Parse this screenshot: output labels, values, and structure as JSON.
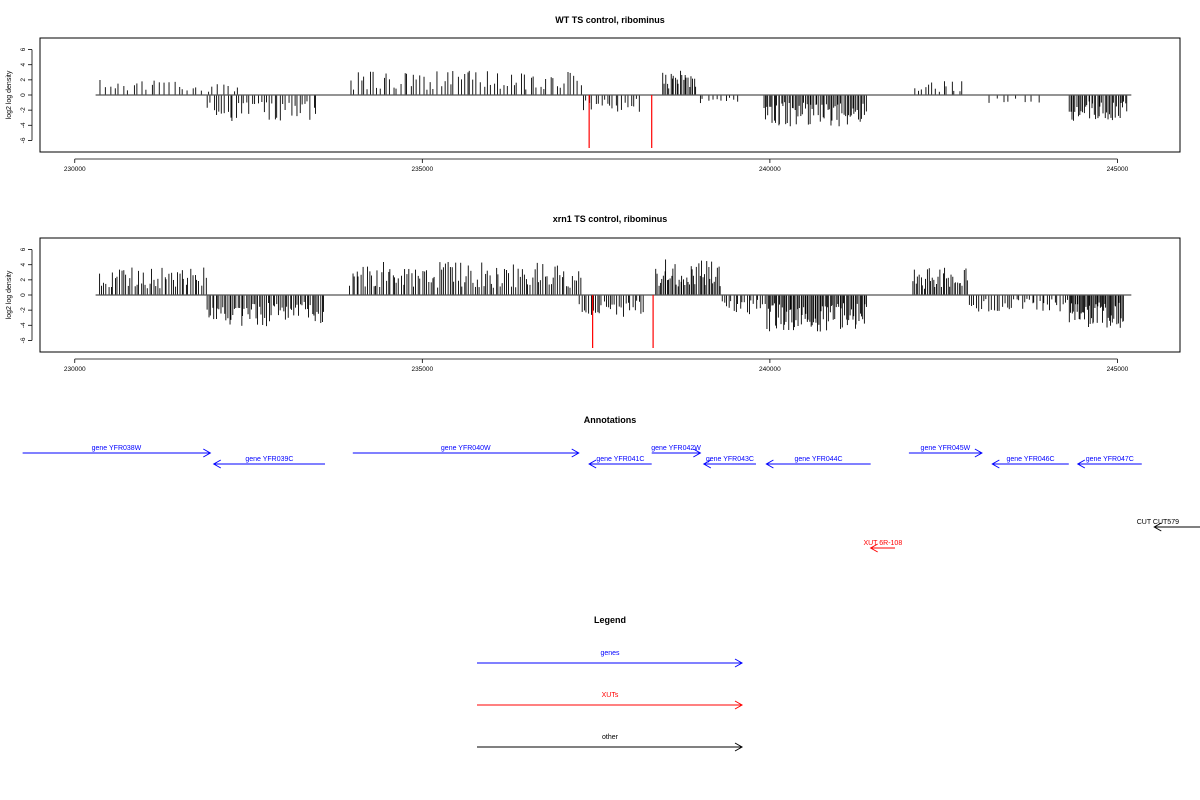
{
  "chart_data": [
    {
      "type": "bar",
      "title": "WT TS control, ribominus",
      "xlabel": "",
      "ylabel": "log2 log density",
      "xlim": [
        229500,
        245900
      ],
      "ylim": [
        -7,
        7
      ],
      "x_ticks": [
        230000,
        235000,
        240000,
        245000
      ],
      "y_ticks": [
        6,
        4,
        2,
        0,
        -2,
        -4,
        -6
      ],
      "baseline": {
        "x": [
          230300,
          245200
        ],
        "y": 0
      },
      "segments": [
        {
          "start": 230350,
          "end": 231800,
          "sign": 1,
          "amp": 2.0,
          "count": 22
        },
        {
          "start": 231800,
          "end": 232400,
          "sign": 1,
          "amp": 1.5,
          "count": 8
        },
        {
          "start": 231900,
          "end": 233500,
          "sign": -1,
          "amp": 3.0,
          "count": 40
        },
        {
          "start": 233950,
          "end": 237300,
          "sign": 1,
          "amp": 2.8,
          "count": 70
        },
        {
          "start": 237300,
          "end": 238150,
          "sign": -1,
          "amp": 2.0,
          "count": 20
        },
        {
          "start": 238450,
          "end": 238950,
          "sign": 1,
          "amp": 2.8,
          "count": 22
        },
        {
          "start": 238950,
          "end": 239600,
          "sign": -1,
          "amp": 1.0,
          "count": 10
        },
        {
          "start": 239900,
          "end": 241400,
          "sign": -1,
          "amp": 3.6,
          "count": 70
        },
        {
          "start": 242050,
          "end": 242800,
          "sign": 1,
          "amp": 1.6,
          "count": 14
        },
        {
          "start": 243100,
          "end": 243900,
          "sign": -1,
          "amp": 1.0,
          "count": 8
        },
        {
          "start": 244300,
          "end": 245150,
          "sign": -1,
          "amp": 3.0,
          "count": 40
        }
      ],
      "highlights": [
        {
          "x": 237400,
          "y": -7,
          "color": "#ff0000"
        },
        {
          "x": 238300,
          "y": -7,
          "color": "#ff0000"
        }
      ]
    },
    {
      "type": "bar",
      "title": "xrn1 TS control, ribominus",
      "xlabel": "",
      "ylabel": "log2 log density",
      "xlim": [
        229500,
        245900
      ],
      "ylim": [
        -7,
        7
      ],
      "x_ticks": [
        230000,
        235000,
        240000,
        245000
      ],
      "y_ticks": [
        6,
        4,
        2,
        0,
        -2,
        -4,
        -6
      ],
      "baseline": {
        "x": [
          230300,
          245200
        ],
        "y": 0
      },
      "segments": [
        {
          "start": 230350,
          "end": 231900,
          "sign": 1,
          "amp": 3.2,
          "count": 50
        },
        {
          "start": 231900,
          "end": 233600,
          "sign": -1,
          "amp": 3.6,
          "count": 70
        },
        {
          "start": 233950,
          "end": 237300,
          "sign": 1,
          "amp": 3.8,
          "count": 110
        },
        {
          "start": 237250,
          "end": 238200,
          "sign": -1,
          "amp": 2.6,
          "count": 30
        },
        {
          "start": 238350,
          "end": 239300,
          "sign": 1,
          "amp": 4.2,
          "count": 45
        },
        {
          "start": 239300,
          "end": 239950,
          "sign": -1,
          "amp": 2.2,
          "count": 20
        },
        {
          "start": 239950,
          "end": 241400,
          "sign": -1,
          "amp": 4.2,
          "count": 80
        },
        {
          "start": 242050,
          "end": 242850,
          "sign": 1,
          "amp": 3.2,
          "count": 35
        },
        {
          "start": 242850,
          "end": 244300,
          "sign": -1,
          "amp": 2.0,
          "count": 40
        },
        {
          "start": 244300,
          "end": 245100,
          "sign": -1,
          "amp": 3.8,
          "count": 50
        }
      ],
      "highlights": [
        {
          "x": 237450,
          "y": -7,
          "color": "#ff0000"
        },
        {
          "x": 238320,
          "y": -7,
          "color": "#ff0000"
        }
      ]
    }
  ],
  "annotations": {
    "title": "Annotations",
    "features": [
      {
        "label": "gene YFR038W",
        "start": 229250,
        "end": 231950,
        "strand": "+",
        "row": 0,
        "color": "#0000ff"
      },
      {
        "label": "gene YFR039C",
        "start": 232000,
        "end": 233600,
        "strand": "-",
        "row": 1,
        "color": "#0000ff"
      },
      {
        "label": "gene YFR040W",
        "start": 234000,
        "end": 237250,
        "strand": "+",
        "row": 0,
        "color": "#0000ff"
      },
      {
        "label": "gene YFR041C",
        "start": 237400,
        "end": 238300,
        "strand": "-",
        "row": 1,
        "color": "#0000ff"
      },
      {
        "label": "gene YFR042W",
        "start": 238300,
        "end": 239000,
        "strand": "+",
        "row": 0,
        "color": "#0000ff"
      },
      {
        "label": "gene YFR043C",
        "start": 239050,
        "end": 239800,
        "strand": "-",
        "row": 1,
        "color": "#0000ff"
      },
      {
        "label": "gene YFR044C",
        "start": 239950,
        "end": 241450,
        "strand": "-",
        "row": 1,
        "color": "#0000ff"
      },
      {
        "label": "gene YFR045W",
        "start": 242000,
        "end": 243050,
        "strand": "+",
        "row": 0,
        "color": "#0000ff"
      },
      {
        "label": "gene YFR046C",
        "start": 243200,
        "end": 244300,
        "strand": "-",
        "row": 1,
        "color": "#0000ff"
      },
      {
        "label": "gene YFR047C",
        "start": 244430,
        "end": 245350,
        "strand": "-",
        "row": 1,
        "color": "#0000ff"
      },
      {
        "label": "CUT CUT579",
        "start": 245530,
        "end": 246250,
        "strand": "-",
        "row": 2,
        "color": "#000000"
      },
      {
        "label": "XUT 6R-108",
        "start": 241450,
        "end": 241800,
        "strand": "-",
        "row": 3,
        "color": "#ff0000"
      }
    ]
  },
  "legend": {
    "title": "Legend",
    "items": [
      {
        "label": "genes",
        "color": "#0000ff"
      },
      {
        "label": "XUTs",
        "color": "#ff0000"
      },
      {
        "label": "other",
        "color": "#000000"
      }
    ]
  }
}
